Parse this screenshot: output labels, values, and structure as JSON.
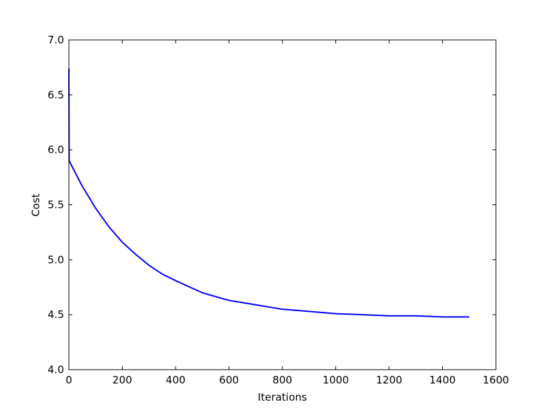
{
  "chart_data": {
    "type": "line",
    "xlabel": "Iterations",
    "ylabel": "Cost",
    "x": [
      0,
      1,
      50,
      100,
      150,
      200,
      250,
      300,
      350,
      400,
      500,
      600,
      700,
      800,
      900,
      1000,
      1100,
      1200,
      1300,
      1400,
      1500
    ],
    "values": [
      6.74,
      5.9,
      5.67,
      5.47,
      5.3,
      5.16,
      5.05,
      4.95,
      4.87,
      4.81,
      4.7,
      4.63,
      4.59,
      4.55,
      4.53,
      4.51,
      4.5,
      4.49,
      4.49,
      4.48,
      4.48
    ],
    "color": "#0000ff",
    "xlim": [
      0,
      1600
    ],
    "xticks": [
      0,
      200,
      400,
      600,
      800,
      1000,
      1200,
      1400,
      1600
    ],
    "ylim": [
      4,
      7
    ],
    "yticks": [
      {
        "value": 4,
        "label": "4.0"
      },
      4.5,
      {
        "value": 5,
        "label": "5.0"
      },
      5.5,
      {
        "value": 6,
        "label": "6.0"
      },
      6.5,
      {
        "value": 7,
        "label": "7.0"
      }
    ],
    "grid": false
  }
}
